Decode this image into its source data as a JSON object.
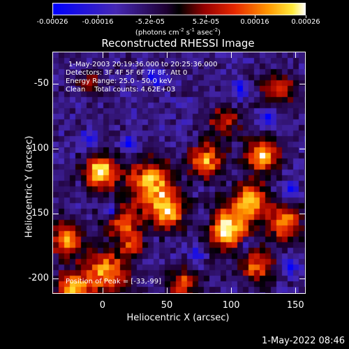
{
  "colorbar": {
    "tick_labels": [
      "-0.00026",
      "-0.00016",
      "-5.2e-05",
      "5.2e-05",
      "0.00016",
      "0.00026"
    ],
    "units_prefix": "(photons cm",
    "units_sup1": "-2",
    "units_mid": " s",
    "units_sup2": "-1",
    "units_mid2": " asec",
    "units_sup3": "-2",
    "units_suffix": ")"
  },
  "title": "Reconstructed RHESSI Image",
  "annotations": {
    "time_range": "1-May-2003 20:19:36.000 to 20:25:36.000",
    "detectors": "Detectors: 3F 4F 5F 6F 7F 8F, Att 0",
    "energy_range": "Energy Range: 25.0 - 50.0 keV",
    "clean_counts": "Clean    Total counts: 4.62E+03",
    "peak_position": "Position of Peak = [-33,-99]"
  },
  "axes": {
    "xlabel": "Heliocentric X (arcsec)",
    "ylabel": "Heliocentric Y (arcsec)",
    "xticks": [
      "0",
      "50",
      "100",
      "150"
    ],
    "xtick_values": [
      0,
      50,
      100,
      150
    ],
    "yticks": [
      "-50",
      "-100",
      "-150",
      "-200"
    ],
    "ytick_values": [
      -50,
      -100,
      -150,
      -200
    ],
    "xlim": [
      -39,
      158
    ],
    "ylim": [
      -212,
      -25
    ]
  },
  "datestamp": "1-May-2022 08:46"
}
